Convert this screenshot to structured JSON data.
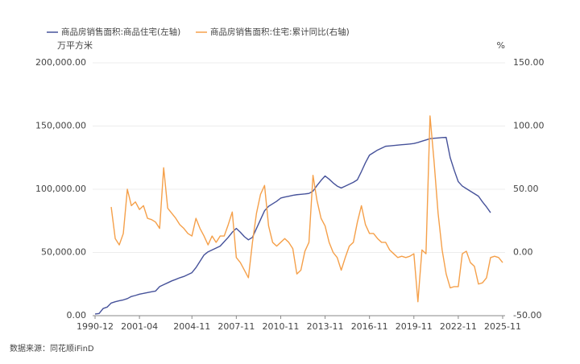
{
  "chart_data": {
    "type": "line",
    "y_label": "万平方米",
    "y2_label": "%",
    "source": "数据来源：同花顺iFinD",
    "grid": true,
    "legend": "top-left",
    "categories": [
      "1990-12",
      null,
      null,
      null,
      null,
      null,
      null,
      null,
      null,
      null,
      null,
      "2001-04",
      null,
      null,
      null,
      null,
      null,
      null,
      null,
      null,
      null,
      null,
      null,
      null,
      "2004-11",
      null,
      null,
      null,
      null,
      null,
      null,
      null,
      null,
      null,
      null,
      "2007-11",
      null,
      null,
      null,
      null,
      null,
      null,
      null,
      null,
      null,
      null,
      "2010-11",
      null,
      null,
      null,
      null,
      null,
      null,
      null,
      null,
      null,
      null,
      "2013-11",
      null,
      null,
      null,
      null,
      null,
      null,
      null,
      null,
      null,
      null,
      "2016-11",
      null,
      null,
      null,
      null,
      null,
      null,
      null,
      null,
      null,
      null,
      "2019-11",
      null,
      null,
      null,
      null,
      null,
      null,
      null,
      null,
      null,
      null,
      "2022-11",
      null,
      null,
      null,
      null,
      null,
      null,
      null,
      null,
      null,
      null,
      "2025-11"
    ],
    "series": [
      {
        "name": "商品房销售面积:商品住宅(左轴)",
        "color": "#46529a",
        "axis": "y",
        "values": [
          1300,
          1700,
          5700,
          6800,
          10000,
          11000,
          11800,
          12500,
          13500,
          15200,
          16000,
          17000,
          17600,
          18300,
          18900,
          19500,
          23000,
          24500,
          26000,
          27500,
          28700,
          30000,
          31000,
          32500,
          34000,
          38000,
          43000,
          48000,
          50500,
          52000,
          53500,
          55000,
          58500,
          62000,
          66000,
          69000,
          66000,
          62500,
          60000,
          62000,
          69000,
          76000,
          83000,
          86500,
          88500,
          90500,
          93000,
          93800,
          94500,
          95200,
          95700,
          96000,
          96300,
          96700,
          98500,
          103000,
          107000,
          110500,
          108000,
          105000,
          102500,
          101000,
          102500,
          104000,
          105500,
          107500,
          114000,
          121000,
          127000,
          129000,
          131000,
          132500,
          134000,
          134300,
          134600,
          134900,
          135200,
          135500,
          135800,
          136200,
          137000,
          138000,
          139000,
          140000,
          140300,
          140600,
          140900,
          141000,
          125000,
          115000,
          106000,
          102500,
          100500,
          98500,
          96500,
          94500,
          90000,
          86000,
          81500,
          null,
          null,
          null
        ]
      },
      {
        "name": "商品房销售面积:住宅:累计同比(右轴)",
        "color": "#f5a04a",
        "axis": "y2",
        "values": [
          null,
          null,
          null,
          null,
          36,
          11,
          6,
          15,
          50,
          37,
          40,
          34,
          37,
          27,
          26,
          24,
          19,
          67,
          35,
          31,
          27,
          22,
          19,
          15,
          13,
          27,
          19,
          13,
          6,
          13,
          8,
          13,
          13,
          22,
          32,
          -4,
          -8,
          -14,
          -20,
          8,
          31,
          46,
          53,
          21,
          8,
          5,
          8,
          11,
          8,
          3,
          -17,
          -14,
          1,
          8,
          61,
          41,
          27,
          21,
          8,
          0,
          -4,
          -14,
          -4,
          5,
          8,
          24,
          37,
          22,
          15,
          15,
          11,
          8,
          8,
          2,
          -1,
          -4,
          -3,
          -4,
          -3,
          -1,
          -39,
          2,
          -1,
          108,
          72,
          31,
          2,
          -17,
          -28,
          -27,
          -27,
          -1,
          1,
          -8,
          -11,
          -25,
          -24,
          -20,
          -4,
          -3,
          -4,
          -8
        ]
      }
    ],
    "ylim": [
      0,
      200000
    ],
    "yticks": [
      {
        "value": 0,
        "label": "0.00"
      },
      {
        "value": 50000,
        "label": "50,000.00"
      },
      {
        "value": 100000,
        "label": "100,000.00"
      },
      {
        "value": 150000,
        "label": "150,000.00"
      },
      {
        "value": 200000,
        "label": "200,000.00"
      }
    ],
    "y2lim": [
      -50,
      150
    ],
    "y2ticks": [
      {
        "value": -50,
        "label": "-50.00"
      },
      {
        "value": 0,
        "label": "0.00"
      },
      {
        "value": 50,
        "label": "50.00"
      },
      {
        "value": 100,
        "label": "100.00"
      },
      {
        "value": 150,
        "label": "150.00"
      }
    ]
  }
}
